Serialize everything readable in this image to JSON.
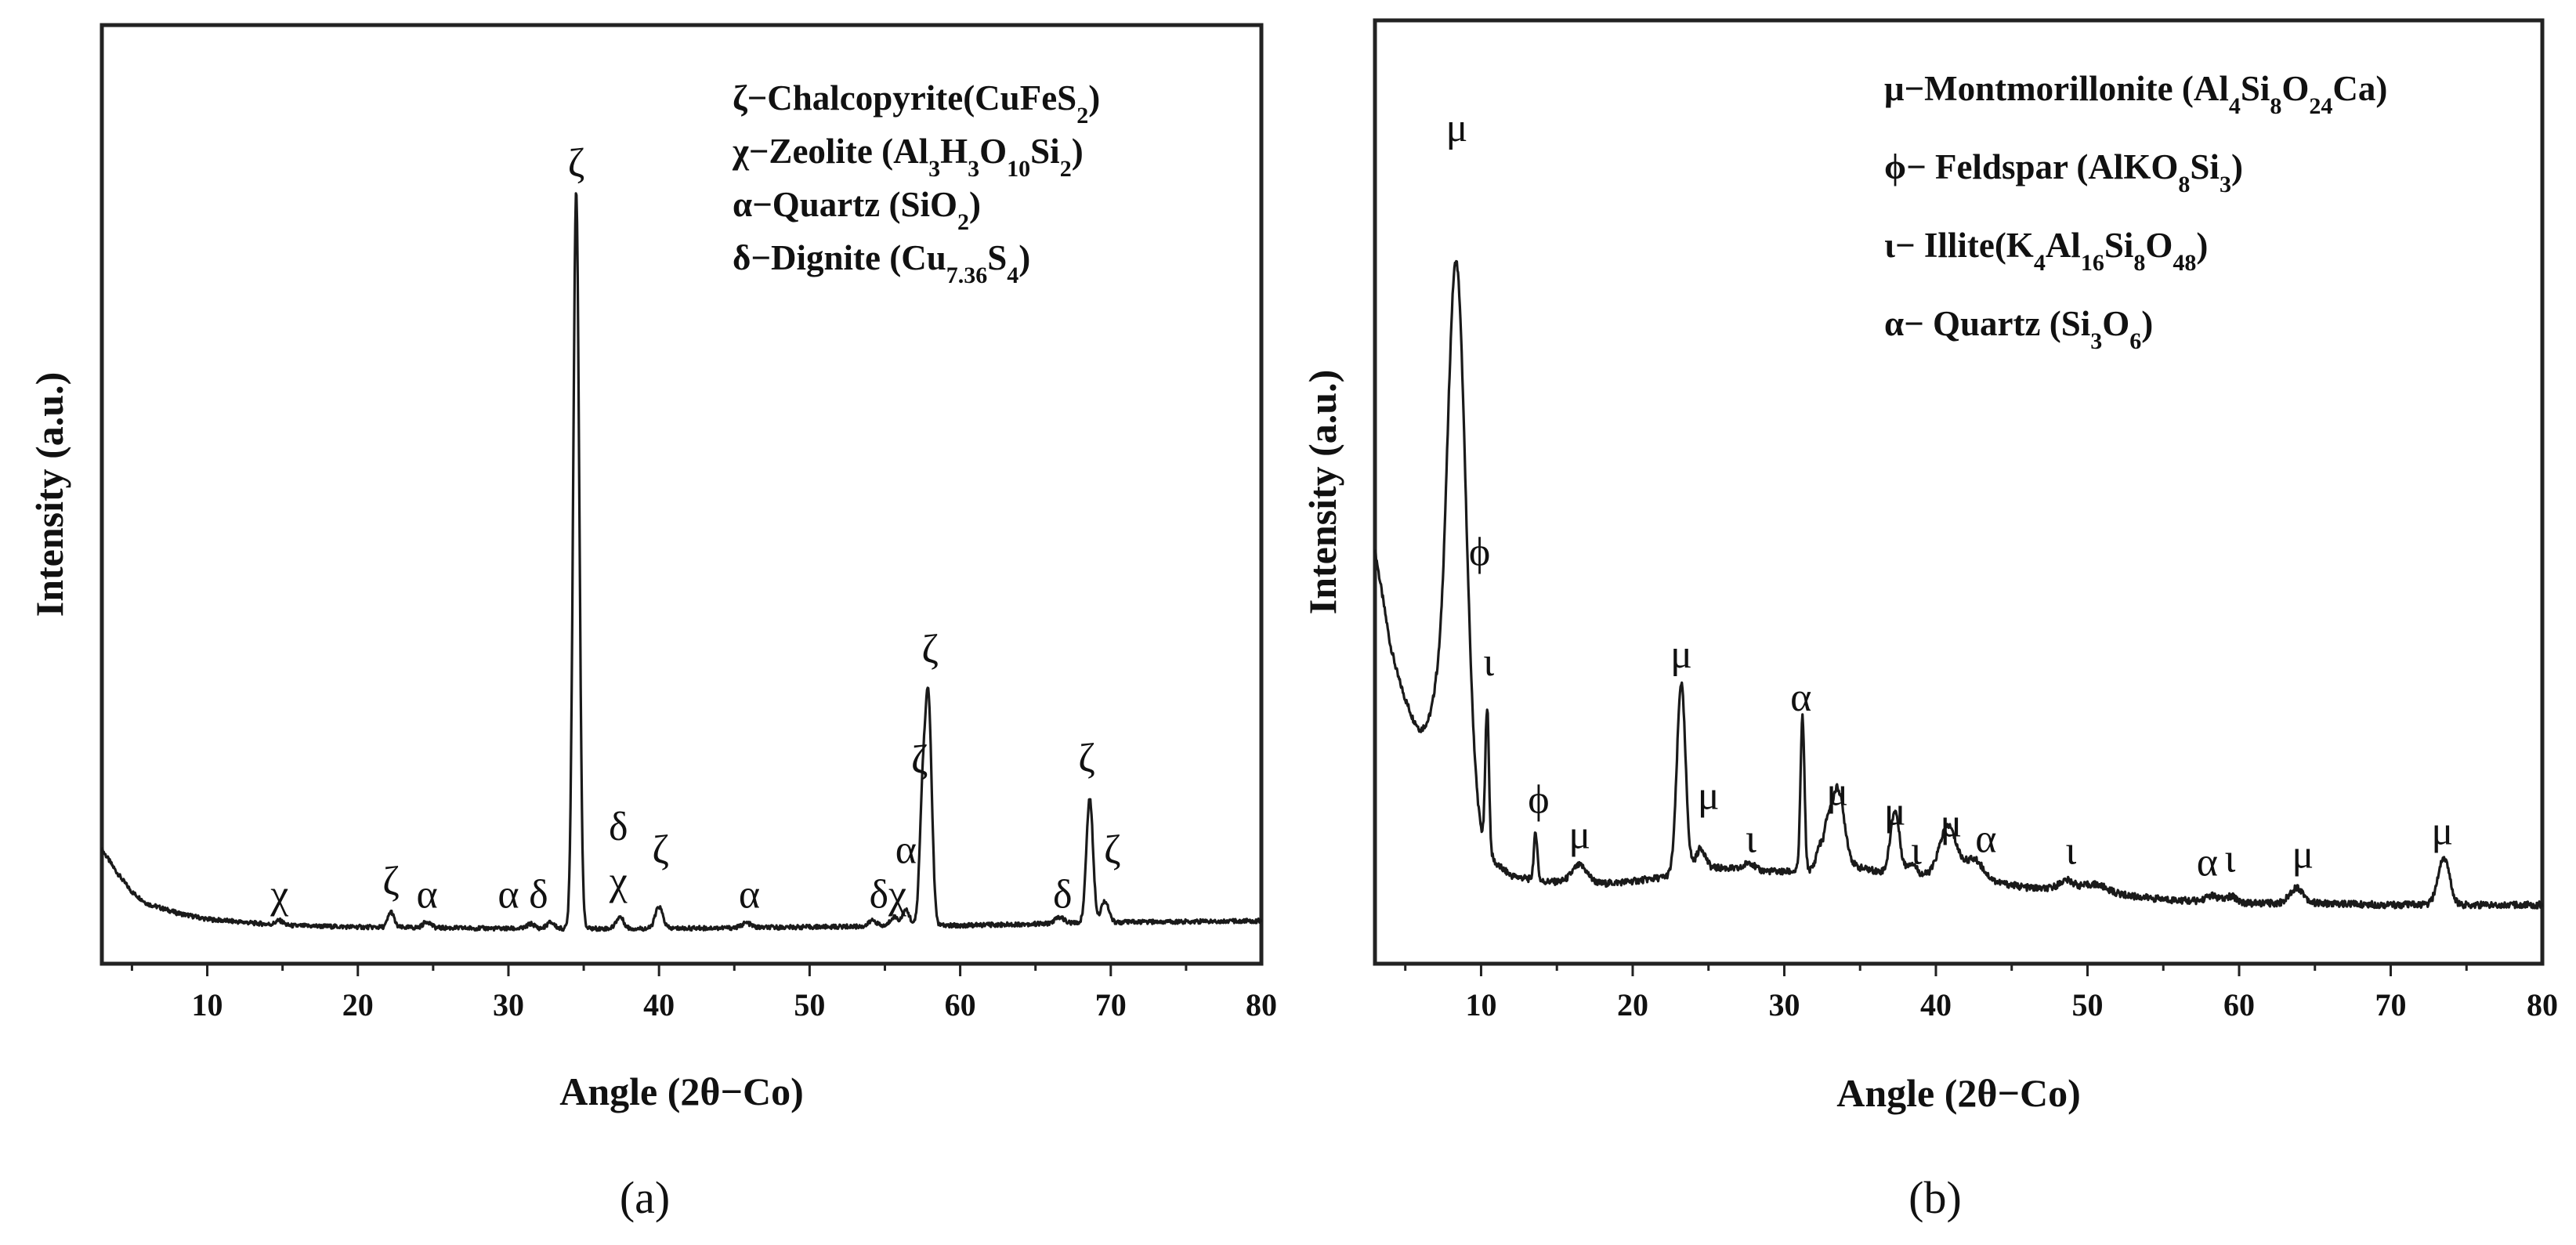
{
  "chart_data": [
    {
      "type": "line",
      "panel": "(a)",
      "title": "",
      "xlabel": "Angle (2θ−Co)",
      "ylabel": "Intensity (a.u.)",
      "xlim": [
        3,
        80
      ],
      "ylim": [
        0,
        100
      ],
      "xticks": [
        "10",
        "20",
        "30",
        "40",
        "50",
        "60",
        "70",
        "80"
      ],
      "xtick_values": [
        10,
        20,
        30,
        40,
        50,
        60,
        70,
        80
      ],
      "legend_location": "top-right",
      "legend": [
        {
          "symbol": "ζ",
          "parts": [
            {
              "t": "ζ−Chalcopyrite(CuFeS"
            },
            {
              "t": "2",
              "sub": true
            },
            {
              "t": ")"
            }
          ]
        },
        {
          "symbol": "χ",
          "parts": [
            {
              "t": "χ−Zeolite (Al"
            },
            {
              "t": "3",
              "sub": true
            },
            {
              "t": "H"
            },
            {
              "t": "3",
              "sub": true
            },
            {
              "t": "O"
            },
            {
              "t": "10",
              "sub": true
            },
            {
              "t": "Si"
            },
            {
              "t": "2",
              "sub": true
            },
            {
              "t": ")"
            }
          ]
        },
        {
          "symbol": "α",
          "parts": [
            {
              "t": "α−Quartz (SiO"
            },
            {
              "t": "2",
              "sub": true
            },
            {
              "t": ")"
            }
          ]
        },
        {
          "symbol": "δ",
          "parts": [
            {
              "t": "δ−Dignite (Cu"
            },
            {
              "t": "7.36",
              "sub": true
            },
            {
              "t": "S"
            },
            {
              "t": "4",
              "sub": true
            },
            {
              "t": ")"
            }
          ]
        }
      ],
      "baseline": [
        [
          3,
          12.0
        ],
        [
          4,
          9.0
        ],
        [
          5,
          6.5
        ],
        [
          6,
          5.0
        ],
        [
          8,
          3.8
        ],
        [
          10,
          3.0
        ],
        [
          15,
          2.2
        ],
        [
          20,
          2.0
        ],
        [
          30,
          1.8
        ],
        [
          40,
          1.8
        ],
        [
          50,
          2.0
        ],
        [
          60,
          2.2
        ],
        [
          70,
          2.6
        ],
        [
          80,
          2.8
        ]
      ],
      "peaks": [
        {
          "x": 14.8,
          "h": 0.6,
          "w": 0.25
        },
        {
          "x": 22.2,
          "h": 2.0,
          "w": 0.2
        },
        {
          "x": 24.6,
          "h": 0.8,
          "w": 0.25
        },
        {
          "x": 31.5,
          "h": 0.6,
          "w": 0.25
        },
        {
          "x": 32.8,
          "h": 0.8,
          "w": 0.25
        },
        {
          "x": 34.5,
          "h": 95.0,
          "w": 0.2
        },
        {
          "x": 37.4,
          "h": 1.5,
          "w": 0.25
        },
        {
          "x": 40.0,
          "h": 2.8,
          "w": 0.25
        },
        {
          "x": 45.8,
          "h": 0.6,
          "w": 0.3
        },
        {
          "x": 54.2,
          "h": 0.8,
          "w": 0.25
        },
        {
          "x": 55.6,
          "h": 1.2,
          "w": 0.25
        },
        {
          "x": 56.4,
          "h": 2.0,
          "w": 0.25
        },
        {
          "x": 57.5,
          "h": 15.0,
          "w": 0.2
        },
        {
          "x": 57.9,
          "h": 28.0,
          "w": 0.22
        },
        {
          "x": 66.6,
          "h": 0.8,
          "w": 0.3
        },
        {
          "x": 68.6,
          "h": 16.0,
          "w": 0.22
        },
        {
          "x": 69.6,
          "h": 2.8,
          "w": 0.25
        }
      ],
      "peak_labels": [
        {
          "text": "χ",
          "x": 14.8,
          "y": 4.5
        },
        {
          "text": "ζ",
          "x": 22.2,
          "y": 6.2
        },
        {
          "text": "α",
          "x": 24.6,
          "y": 4.5
        },
        {
          "text": "α",
          "x": 30.0,
          "y": 4.5
        },
        {
          "text": "δ",
          "x": 32.0,
          "y": 4.5
        },
        {
          "text": "ζ",
          "x": 34.5,
          "y": 98.5
        },
        {
          "text": "δ",
          "x": 37.3,
          "y": 13.2
        },
        {
          "text": "χ",
          "x": 37.3,
          "y": 6.2
        },
        {
          "text": "ζ",
          "x": 40.1,
          "y": 10.2
        },
        {
          "text": "α",
          "x": 46.0,
          "y": 4.5
        },
        {
          "text": "α",
          "x": 56.4,
          "y": 10.2
        },
        {
          "text": "δχ",
          "x": 55.2,
          "y": 4.5
        },
        {
          "text": "ζ",
          "x": 57.3,
          "y": 21.8
        },
        {
          "text": "ζ",
          "x": 58.0,
          "y": 36.0
        },
        {
          "text": "ζ",
          "x": 68.4,
          "y": 22.0
        },
        {
          "text": "δ",
          "x": 66.8,
          "y": 4.5
        },
        {
          "text": "ζ",
          "x": 70.1,
          "y": 10.2
        }
      ]
    },
    {
      "type": "line",
      "panel": "(b)",
      "title": "",
      "xlabel": "Angle (2θ−Co)",
      "ylabel": "Intensity (a.u.)",
      "xlim": [
        3,
        80
      ],
      "ylim": [
        0,
        100
      ],
      "xticks": [
        "10",
        "20",
        "30",
        "40",
        "50",
        "60",
        "70",
        "80"
      ],
      "xtick_values": [
        10,
        20,
        30,
        40,
        50,
        60,
        70,
        80
      ],
      "legend_location": "top-right",
      "legend": [
        {
          "symbol": "μ",
          "parts": [
            {
              "t": "μ−Montmorillonite (Al"
            },
            {
              "t": "4",
              "sub": true
            },
            {
              "t": "Si"
            },
            {
              "t": "8",
              "sub": true
            },
            {
              "t": "O"
            },
            {
              "t": "24",
              "sub": true
            },
            {
              "t": "Ca)"
            }
          ]
        },
        {
          "symbol": "ϕ",
          "parts": [
            {
              "t": "ϕ− Feldspar (AlKO"
            },
            {
              "t": "8",
              "sub": true
            },
            {
              "t": "Si"
            },
            {
              "t": "3",
              "sub": true
            },
            {
              "t": ")"
            }
          ]
        },
        {
          "symbol": "ι",
          "parts": [
            {
              "t": "ι− Illite(K"
            },
            {
              "t": "4",
              "sub": true
            },
            {
              "t": "Al"
            },
            {
              "t": "16",
              "sub": true
            },
            {
              "t": "Si"
            },
            {
              "t": "8",
              "sub": true
            },
            {
              "t": "O"
            },
            {
              "t": "48",
              "sub": true
            },
            {
              "t": ")"
            }
          ]
        },
        {
          "symbol": "α",
          "parts": [
            {
              "t": "α− Quartz (Si"
            },
            {
              "t": "3",
              "sub": true
            },
            {
              "t": "O"
            },
            {
              "t": "6",
              "sub": true
            },
            {
              "t": ")"
            }
          ]
        }
      ],
      "baseline": [
        [
          3,
          50.0
        ],
        [
          3.5,
          44.0
        ],
        [
          4,
          38.0
        ],
        [
          4.5,
          34.0
        ],
        [
          5,
          31.0
        ],
        [
          5.5,
          28.5
        ],
        [
          6,
          27.0
        ],
        [
          6.5,
          28.0
        ],
        [
          7,
          30.0
        ],
        [
          10,
          13.0
        ],
        [
          11,
          10.0
        ],
        [
          12,
          8.5
        ],
        [
          14,
          7.8
        ],
        [
          18,
          7.5
        ],
        [
          20,
          7.8
        ],
        [
          22,
          8.3
        ],
        [
          24,
          9.5
        ],
        [
          26,
          9.5
        ],
        [
          28,
          9.2
        ],
        [
          30,
          9.0
        ],
        [
          31.5,
          9.2
        ],
        [
          33,
          9.8
        ],
        [
          35,
          9.5
        ],
        [
          37,
          8.8
        ],
        [
          40,
          8.5
        ],
        [
          43,
          8.0
        ],
        [
          46,
          7.0
        ],
        [
          50,
          6.5
        ],
        [
          55,
          5.5
        ],
        [
          60,
          5.0
        ],
        [
          65,
          5.0
        ],
        [
          70,
          4.8
        ],
        [
          75,
          4.8
        ],
        [
          80,
          4.8
        ]
      ],
      "peaks": [
        {
          "x": 8.3,
          "h": 58.0,
          "w": 0.55
        },
        {
          "x": 8.9,
          "h": 12.0,
          "w": 0.5
        },
        {
          "x": 10.4,
          "h": 18.0,
          "w": 0.12
        },
        {
          "x": 13.6,
          "h": 6.0,
          "w": 0.12
        },
        {
          "x": 16.5,
          "h": 2.2,
          "w": 0.5
        },
        {
          "x": 23.2,
          "h": 24.0,
          "w": 0.28
        },
        {
          "x": 24.5,
          "h": 2.5,
          "w": 0.3
        },
        {
          "x": 27.7,
          "h": 1.0,
          "w": 0.3
        },
        {
          "x": 31.2,
          "h": 19.5,
          "w": 0.13
        },
        {
          "x": 32.3,
          "h": 2.5,
          "w": 0.2
        },
        {
          "x": 32.8,
          "h": 3.0,
          "w": 0.2
        },
        {
          "x": 33.5,
          "h": 10.0,
          "w": 0.45
        },
        {
          "x": 37.3,
          "h": 8.0,
          "w": 0.3
        },
        {
          "x": 38.4,
          "h": 1.5,
          "w": 0.3
        },
        {
          "x": 40.8,
          "h": 6.5,
          "w": 0.55
        },
        {
          "x": 42.5,
          "h": 2.5,
          "w": 0.6
        },
        {
          "x": 48.6,
          "h": 1.2,
          "w": 0.5
        },
        {
          "x": 50.5,
          "h": 1.0,
          "w": 0.8
        },
        {
          "x": 58.2,
          "h": 0.8,
          "w": 0.4
        },
        {
          "x": 59.5,
          "h": 0.8,
          "w": 0.4
        },
        {
          "x": 63.8,
          "h": 2.0,
          "w": 0.45
        },
        {
          "x": 73.5,
          "h": 6.0,
          "w": 0.38
        }
      ],
      "peak_labels": [
        {
          "text": "μ",
          "x": 8.4,
          "y": 102.0
        },
        {
          "text": "ϕ",
          "x": 9.9,
          "y": 48.0
        },
        {
          "text": "ι",
          "x": 10.5,
          "y": 34.0
        },
        {
          "text": "μ",
          "x": 23.2,
          "y": 35.0
        },
        {
          "text": "α",
          "x": 31.1,
          "y": 29.5
        },
        {
          "text": "ϕ",
          "x": 13.8,
          "y": 16.5
        },
        {
          "text": "μ",
          "x": 16.5,
          "y": 12.0
        },
        {
          "text": "μ",
          "x": 25.0,
          "y": 17.0
        },
        {
          "text": "ι",
          "x": 27.8,
          "y": 11.5
        },
        {
          "text": "μ",
          "x": 33.5,
          "y": 17.5
        },
        {
          "text": "μ",
          "x": 37.3,
          "y": 15.0
        },
        {
          "text": "ι",
          "x": 38.7,
          "y": 10.0
        },
        {
          "text": "μ",
          "x": 41.0,
          "y": 13.5
        },
        {
          "text": "α",
          "x": 43.3,
          "y": 11.5
        },
        {
          "text": "ι",
          "x": 48.9,
          "y": 10.0
        },
        {
          "text": "α",
          "x": 57.9,
          "y": 8.5
        },
        {
          "text": "ι",
          "x": 59.4,
          "y": 9.0
        },
        {
          "text": "μ",
          "x": 64.2,
          "y": 9.5
        },
        {
          "text": "μ",
          "x": 73.4,
          "y": 12.5
        }
      ]
    }
  ]
}
